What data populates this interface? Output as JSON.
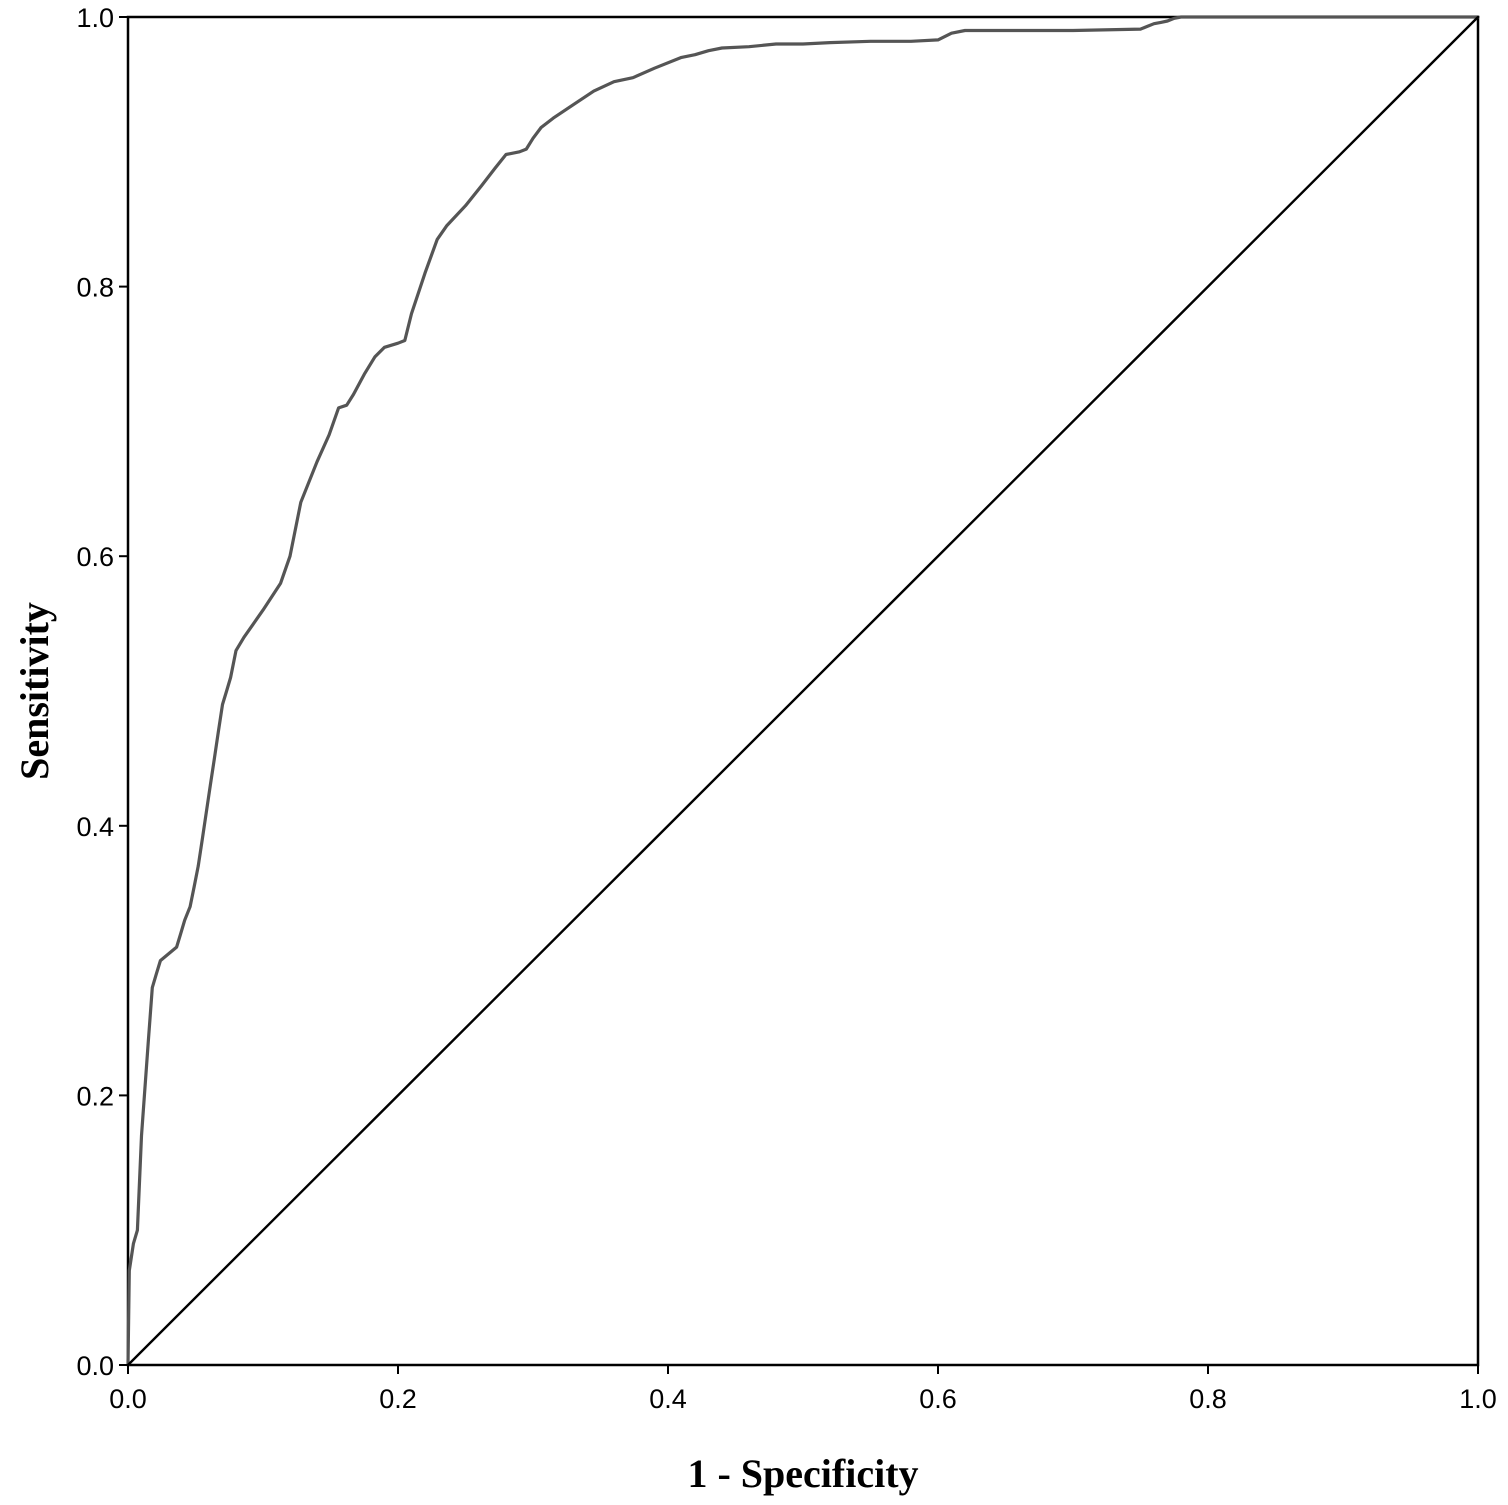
{
  "chart_data": {
    "type": "line",
    "title": "",
    "xlabel": "1 - Specificity",
    "ylabel": "Sensitivity",
    "xlim": [
      0,
      1
    ],
    "ylim": [
      0,
      1
    ],
    "xticks": [
      "0.0",
      "0.2",
      "0.4",
      "0.6",
      "0.8",
      "1.0"
    ],
    "yticks": [
      "0.0",
      "0.2",
      "0.4",
      "0.6",
      "0.8",
      "1.0"
    ],
    "grid": false,
    "legend": "none",
    "series": [
      {
        "color": "#555555",
        "x": [
          0.0,
          0.001,
          0.004,
          0.007,
          0.01,
          0.015,
          0.018,
          0.021,
          0.024,
          0.03,
          0.036,
          0.039,
          0.042,
          0.046,
          0.049,
          0.052,
          0.055,
          0.058,
          0.061,
          0.064,
          0.067,
          0.07,
          0.073,
          0.076,
          0.08,
          0.086,
          0.1,
          0.113,
          0.12,
          0.128,
          0.14,
          0.149,
          0.156,
          0.162,
          0.167,
          0.175,
          0.183,
          0.19,
          0.2,
          0.205,
          0.21,
          0.22,
          0.229,
          0.236,
          0.25,
          0.262,
          0.272,
          0.28,
          0.29,
          0.295,
          0.3,
          0.306,
          0.315,
          0.33,
          0.345,
          0.36,
          0.374,
          0.39,
          0.41,
          0.42,
          0.43,
          0.44,
          0.46,
          0.48,
          0.5,
          0.52,
          0.55,
          0.58,
          0.6,
          0.61,
          0.62,
          0.65,
          0.7,
          0.75,
          0.755,
          0.76,
          0.765,
          0.77,
          0.775,
          0.78,
          0.8,
          0.9,
          1.0
        ],
        "y": [
          0.0,
          0.07,
          0.09,
          0.1,
          0.17,
          0.24,
          0.28,
          0.29,
          0.3,
          0.305,
          0.31,
          0.32,
          0.33,
          0.34,
          0.355,
          0.37,
          0.39,
          0.41,
          0.43,
          0.45,
          0.47,
          0.49,
          0.5,
          0.51,
          0.53,
          0.54,
          0.56,
          0.58,
          0.6,
          0.64,
          0.67,
          0.69,
          0.71,
          0.712,
          0.72,
          0.735,
          0.748,
          0.755,
          0.758,
          0.76,
          0.78,
          0.81,
          0.835,
          0.845,
          0.86,
          0.875,
          0.888,
          0.898,
          0.9,
          0.902,
          0.91,
          0.918,
          0.925,
          0.935,
          0.945,
          0.952,
          0.955,
          0.962,
          0.97,
          0.972,
          0.975,
          0.977,
          0.978,
          0.98,
          0.98,
          0.981,
          0.982,
          0.982,
          0.983,
          0.988,
          0.99,
          0.99,
          0.99,
          0.991,
          0.993,
          0.995,
          0.996,
          0.997,
          0.999,
          1.0,
          1.0,
          1.0,
          1.0
        ]
      },
      {
        "color": "#000000",
        "x": [
          0.0,
          1.0
        ],
        "y": [
          0.0,
          1.0
        ]
      }
    ]
  }
}
